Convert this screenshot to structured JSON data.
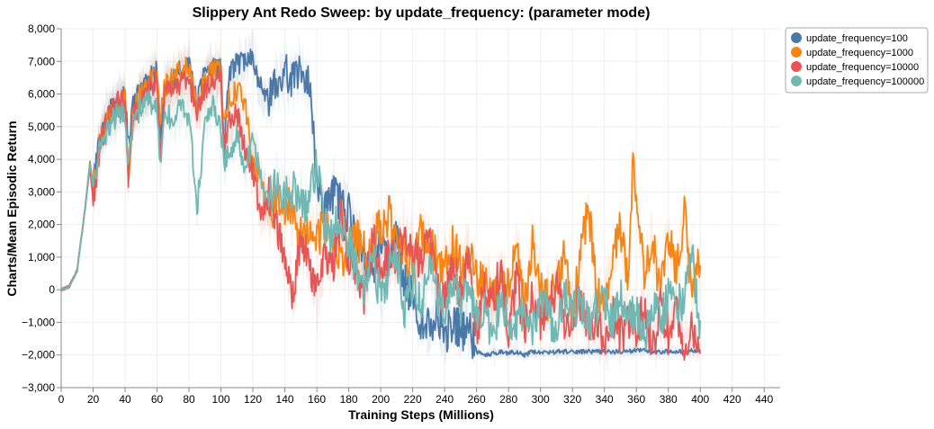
{
  "chart_data": {
    "type": "line",
    "title": "Slippery Ant Redo Sweep: by update_frequency: (parameter mode)",
    "xlabel": "Training Steps (Millions)",
    "ylabel": "Charts/Mean Episodic Return",
    "xlim": [
      0,
      450
    ],
    "ylim": [
      -3000,
      8000
    ],
    "x_ticks": [
      "0",
      "20",
      "40",
      "60",
      "80",
      "100",
      "120",
      "140",
      "160",
      "180",
      "200",
      "220",
      "240",
      "260",
      "280",
      "300",
      "320",
      "340",
      "360",
      "380",
      "400",
      "420",
      "440"
    ],
    "y_ticks": [
      "8,000",
      "7,000",
      "6,000",
      "5,000",
      "4,000",
      "3,000",
      "2,000",
      "1,000",
      "0",
      "−1,000",
      "−2,000",
      "−3,000"
    ],
    "grid": true,
    "legend_position": "top-right",
    "series": [
      {
        "name": "update_frequency=100",
        "color": "#4c78a8",
        "x": [
          0,
          5,
          10,
          15,
          18,
          20,
          25,
          30,
          35,
          40,
          42,
          45,
          50,
          55,
          60,
          62,
          65,
          70,
          75,
          80,
          85,
          90,
          95,
          100,
          102,
          105,
          110,
          115,
          120,
          125,
          130,
          135,
          140,
          145,
          150,
          155,
          160,
          165,
          170,
          175,
          180,
          185,
          190,
          195,
          200,
          205,
          210,
          215,
          220,
          225,
          230,
          235,
          240,
          245,
          250,
          255,
          260,
          265,
          270,
          275,
          280,
          285,
          290,
          295,
          300,
          310,
          320,
          330,
          340,
          350,
          360,
          370,
          380,
          390,
          400
        ],
        "y": [
          0,
          100,
          600,
          2500,
          3900,
          3200,
          4800,
          5400,
          5800,
          5900,
          4400,
          5600,
          6100,
          6400,
          6700,
          4700,
          6200,
          6500,
          6700,
          6800,
          5800,
          6600,
          6800,
          6700,
          4400,
          6500,
          6900,
          7000,
          7200,
          6200,
          5700,
          6400,
          6600,
          6500,
          6700,
          6600,
          3200,
          2400,
          2900,
          2600,
          2400,
          1500,
          900,
          700,
          1300,
          1000,
          1600,
          200,
          -300,
          -900,
          -1100,
          -700,
          -1400,
          -1000,
          -1300,
          -1200,
          -1900,
          -2000,
          -1950,
          -1900,
          -1950,
          -1900,
          -2000,
          -1900,
          -1950,
          -1900,
          -1900,
          -1900,
          -1900,
          -1900,
          -1850,
          -1900,
          -1900,
          -1900,
          -1850
        ]
      },
      {
        "name": "update_frequency=1000",
        "color": "#f58518",
        "x": [
          0,
          5,
          10,
          15,
          18,
          20,
          25,
          30,
          35,
          40,
          42,
          45,
          50,
          55,
          60,
          62,
          65,
          70,
          75,
          80,
          85,
          90,
          95,
          100,
          102,
          105,
          110,
          115,
          120,
          125,
          130,
          135,
          140,
          145,
          150,
          155,
          160,
          165,
          170,
          175,
          180,
          185,
          190,
          195,
          200,
          205,
          210,
          215,
          220,
          225,
          230,
          235,
          240,
          245,
          250,
          255,
          260,
          265,
          270,
          275,
          280,
          285,
          290,
          295,
          300,
          305,
          310,
          315,
          320,
          325,
          330,
          335,
          340,
          345,
          350,
          355,
          358,
          360,
          365,
          370,
          375,
          380,
          385,
          390,
          395,
          400
        ],
        "y": [
          0,
          100,
          600,
          2500,
          3900,
          3200,
          4700,
          5300,
          5700,
          5800,
          3300,
          5500,
          6000,
          6300,
          6800,
          5200,
          6300,
          6500,
          6700,
          6800,
          5500,
          6400,
          6800,
          6700,
          4900,
          5800,
          6100,
          5800,
          4000,
          3500,
          2200,
          2800,
          2600,
          2400,
          1600,
          1800,
          1500,
          2000,
          1200,
          900,
          1300,
          1600,
          1100,
          1400,
          2000,
          2300,
          1600,
          1200,
          700,
          1900,
          1400,
          1000,
          600,
          1400,
          800,
          1200,
          500,
          100,
          -200,
          400,
          0,
          1200,
          -600,
          1500,
          200,
          -400,
          300,
          1000,
          -800,
          1100,
          2500,
          100,
          -300,
          800,
          1900,
          400,
          4300,
          2600,
          600,
          1600,
          -100,
          1800,
          400,
          2400,
          -200,
          1000
        ]
      },
      {
        "name": "update_frequency=10000",
        "color": "#e45756",
        "x": [
          0,
          5,
          10,
          15,
          18,
          20,
          25,
          30,
          35,
          40,
          42,
          45,
          50,
          55,
          60,
          62,
          65,
          70,
          75,
          80,
          85,
          90,
          95,
          100,
          102,
          105,
          110,
          115,
          120,
          125,
          130,
          135,
          140,
          145,
          150,
          155,
          160,
          165,
          170,
          175,
          180,
          185,
          190,
          195,
          200,
          205,
          210,
          215,
          220,
          225,
          230,
          235,
          240,
          245,
          250,
          255,
          260,
          265,
          270,
          275,
          280,
          285,
          290,
          295,
          300,
          305,
          310,
          315,
          320,
          325,
          330,
          335,
          340,
          345,
          350,
          355,
          360,
          365,
          370,
          375,
          380,
          385,
          390,
          395,
          400
        ],
        "y": [
          0,
          100,
          600,
          2500,
          3800,
          2700,
          4600,
          5300,
          5700,
          5800,
          3400,
          5300,
          5800,
          6100,
          6500,
          4200,
          6000,
          6200,
          6300,
          6400,
          5400,
          6200,
          6500,
          6500,
          4200,
          5100,
          5500,
          4300,
          3600,
          2300,
          2800,
          2000,
          900,
          -200,
          1500,
          900,
          -300,
          1200,
          600,
          2200,
          1100,
          600,
          -200,
          1600,
          300,
          1100,
          800,
          1900,
          1200,
          700,
          1500,
          200,
          -500,
          900,
          -200,
          1300,
          -1300,
          200,
          -400,
          600,
          -1300,
          300,
          -1200,
          -200,
          -900,
          -400,
          100,
          -1100,
          -600,
          -300,
          -1200,
          -900,
          -1800,
          -700,
          -1500,
          -900,
          -1200,
          -500,
          -1800,
          -600,
          -1400,
          -800,
          -1600,
          -1200,
          -1900
        ]
      },
      {
        "name": "update_frequency=100000",
        "color": "#72b7b2",
        "x": [
          0,
          5,
          10,
          15,
          18,
          20,
          25,
          30,
          35,
          40,
          42,
          45,
          50,
          55,
          60,
          62,
          65,
          70,
          75,
          80,
          85,
          90,
          95,
          100,
          102,
          105,
          110,
          115,
          120,
          125,
          130,
          135,
          140,
          145,
          150,
          155,
          160,
          165,
          170,
          175,
          180,
          185,
          190,
          195,
          200,
          205,
          210,
          215,
          220,
          225,
          230,
          235,
          240,
          245,
          250,
          255,
          260,
          265,
          270,
          275,
          280,
          285,
          290,
          295,
          300,
          305,
          310,
          315,
          320,
          325,
          330,
          335,
          340,
          345,
          350,
          355,
          360,
          365,
          370,
          375,
          380,
          385,
          390,
          395,
          400
        ],
        "y": [
          0,
          100,
          600,
          2500,
          3900,
          3100,
          4500,
          5000,
          5400,
          5500,
          3700,
          5200,
          5600,
          5800,
          5600,
          3600,
          5500,
          5200,
          5600,
          5300,
          2500,
          5000,
          5700,
          4900,
          3900,
          4200,
          4800,
          3600,
          4600,
          3300,
          2700,
          3400,
          2800,
          3100,
          2600,
          2700,
          3800,
          2000,
          1700,
          2200,
          1500,
          600,
          100,
          1000,
          -300,
          500,
          1200,
          -600,
          300,
          -400,
          700,
          -100,
          -700,
          300,
          -500,
          -200,
          -800,
          -500,
          -1500,
          -300,
          -900,
          -1200,
          -400,
          -1100,
          -300,
          -800,
          -1300,
          -200,
          -700,
          -400,
          -1100,
          -600,
          -300,
          -900,
          -200,
          -1000,
          -700,
          -1400,
          -400,
          -1000,
          -300,
          -600,
          -200,
          1100,
          -1300
        ]
      }
    ]
  }
}
